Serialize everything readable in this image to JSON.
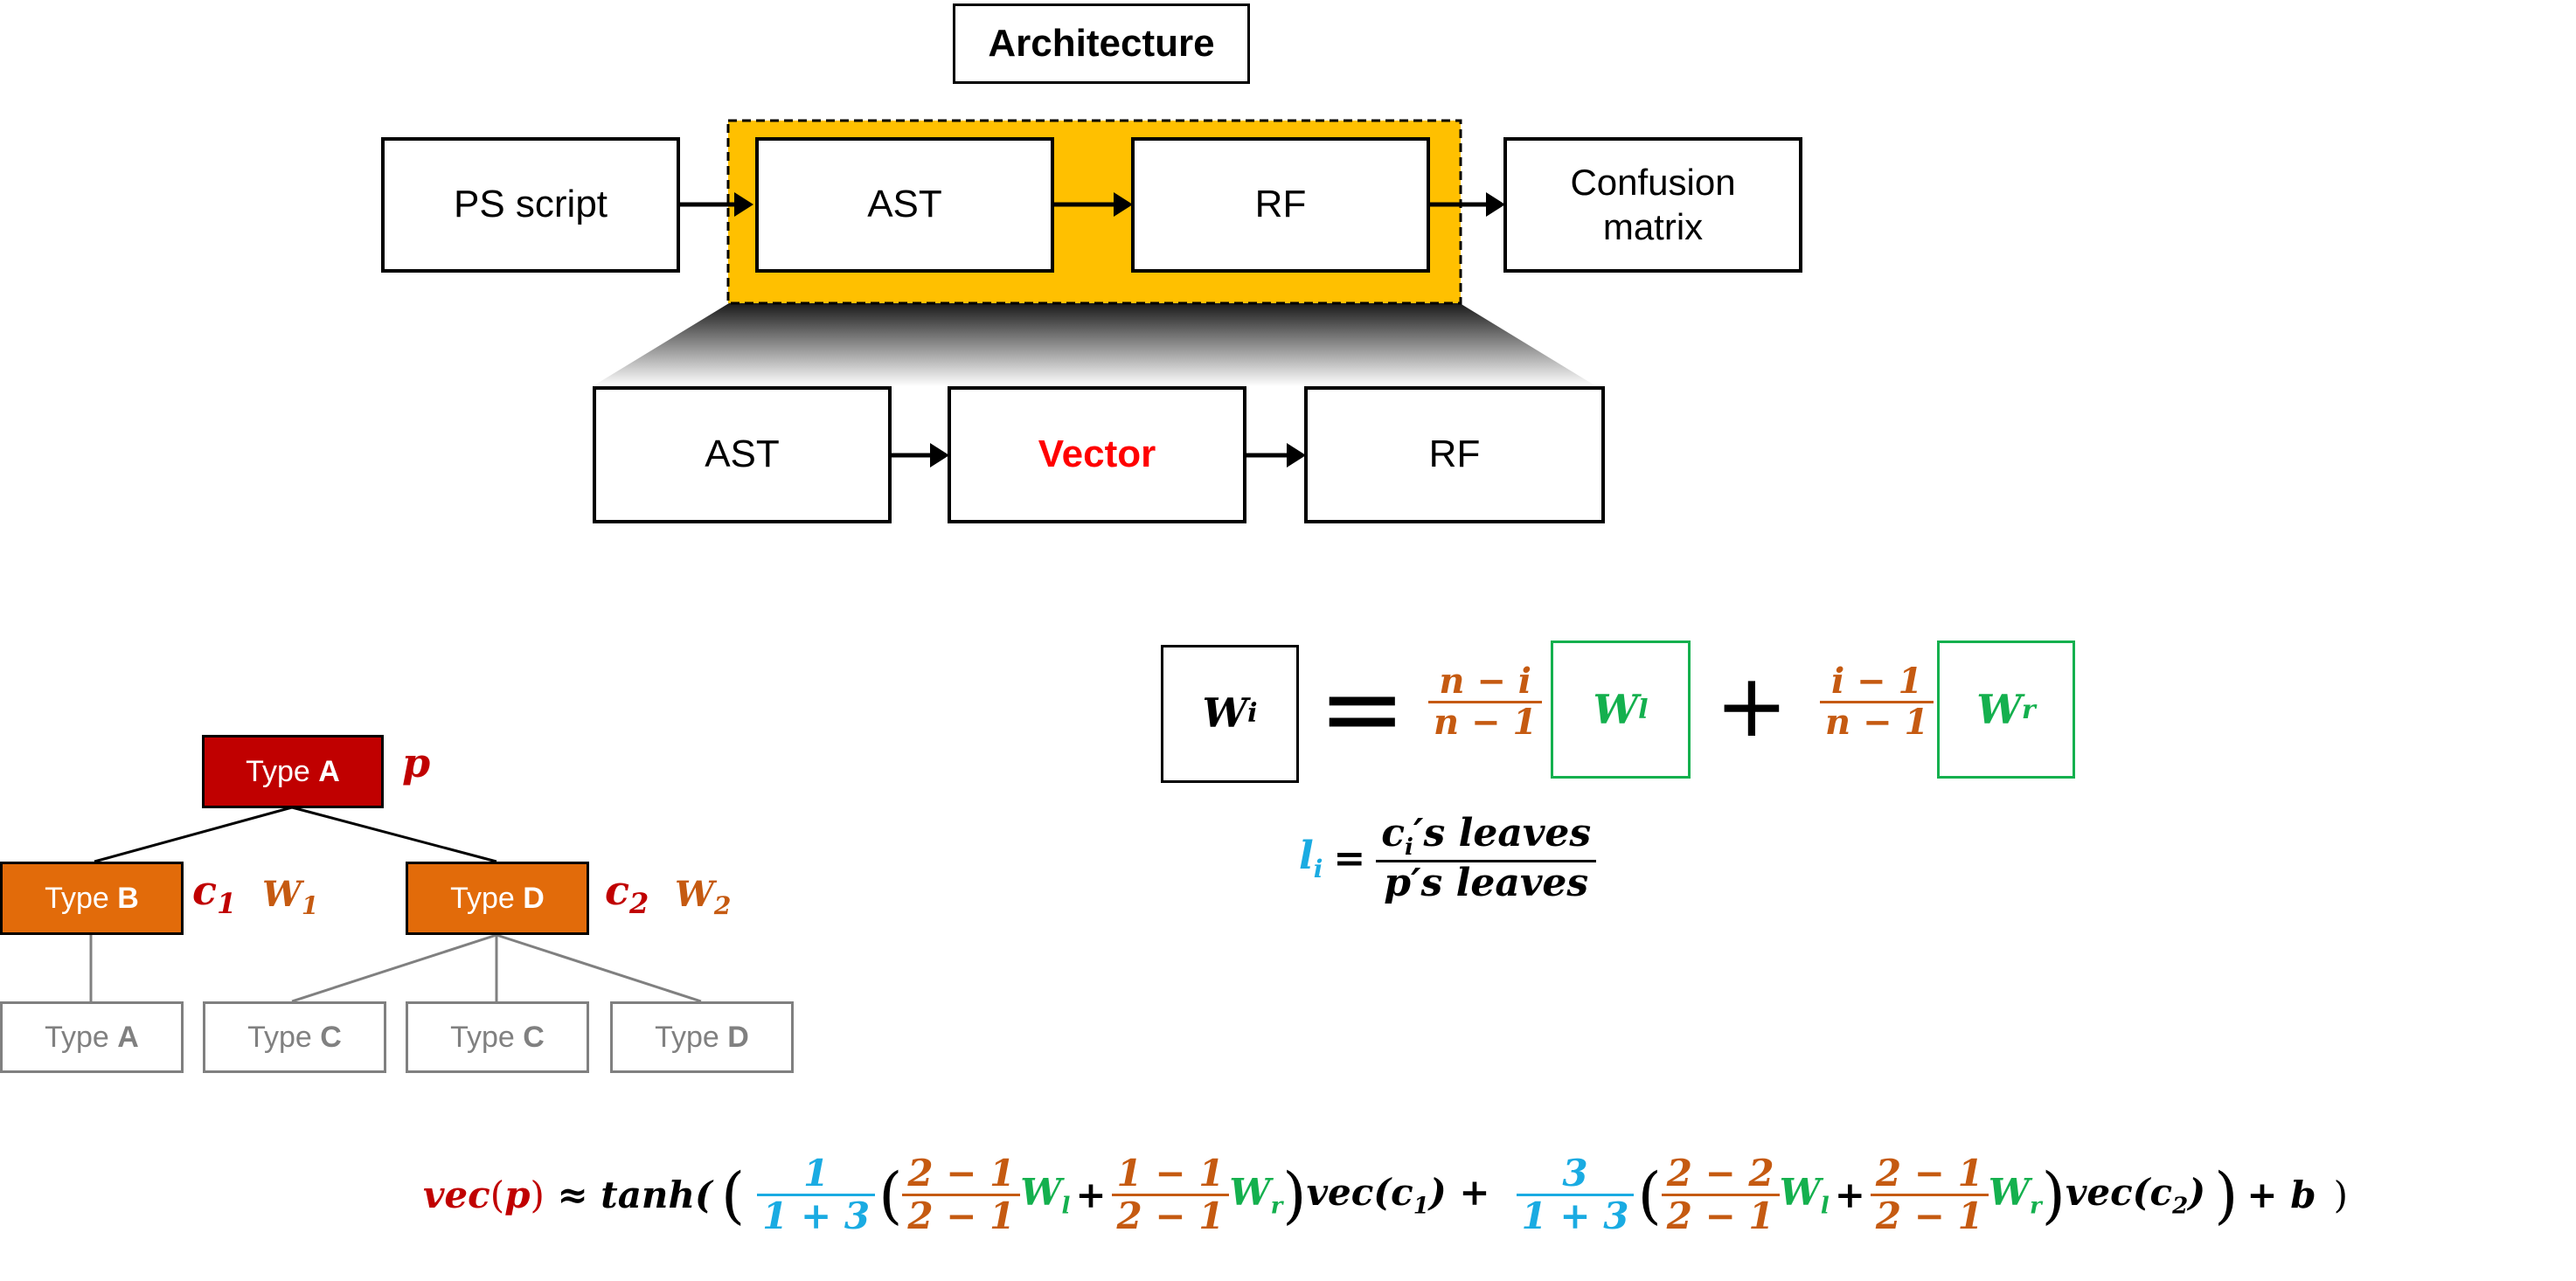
{
  "colors": {
    "highlight": "#ffc000",
    "red": "#c00000",
    "bright_red": "#ff0000",
    "orange": "#e26b0a",
    "orange_text": "#c55a11",
    "green": "#14b04e",
    "blue": "#1aabe2",
    "gray": "#808080"
  },
  "architecture": {
    "title": "Architecture",
    "ps_script": "PS script",
    "ast": "AST",
    "rf": "RF",
    "confusion_line1": "Confusion",
    "confusion_line2": "matrix",
    "zoom_ast": "AST",
    "zoom_vector": "Vector",
    "zoom_rf": "RF"
  },
  "tree": {
    "root": {
      "type": "Type ",
      "letter": "A",
      "label": "p"
    },
    "left": {
      "type": "Type ",
      "letter": "B",
      "label_c": "c",
      "label_c_sub": "1",
      "label_w": "W",
      "label_w_sub": "1"
    },
    "right": {
      "type": "Type ",
      "letter": "D",
      "label_c": "c",
      "label_c_sub": "2",
      "label_w": "W",
      "label_w_sub": "2"
    },
    "leaves": [
      {
        "type": "Type ",
        "letter": "A"
      },
      {
        "type": "Type ",
        "letter": "C"
      },
      {
        "type": "Type ",
        "letter": "C"
      },
      {
        "type": "Type ",
        "letter": "D"
      }
    ]
  },
  "weight_formula": {
    "lhs": "W",
    "lhs_sub": "i",
    "equals": "=",
    "frac1_num": "n − i",
    "frac1_den": "n − 1",
    "wl": "W",
    "wl_sub": "l",
    "plus": "+",
    "frac2_num": "i − 1",
    "frac2_den": "n − 1",
    "wr": "W",
    "wr_sub": "r"
  },
  "leaf_formula": {
    "lhs": "l",
    "lhs_sub": "i",
    "equals": "=",
    "num_c": "c",
    "num_sub": "i",
    "num_rest": "′s leaves",
    "den": "p′s leaves"
  },
  "vec_formula": {
    "vec_p": "vec",
    "p_open": "(",
    "p": "p",
    "p_close": ")",
    "approx": " ≈ tanh(",
    "paren_open": "(",
    "t1_num": "1",
    "t1_den": "1 + 3",
    "t1_open": "(",
    "t1_a_num": "2 − 1",
    "t1_a_den": "2 − 1",
    "t1_wl": "W",
    "t1_wl_sub": "l",
    "t1_plus": "+",
    "t1_b_num": "1 − 1",
    "t1_b_den": "2 − 1",
    "t1_wr": "W",
    "t1_wr_sub": "r",
    "t1_close": ")",
    "t1_vec": "vec(c",
    "t1_vec_sub": "1",
    "t1_vec_close": ") +",
    "t2_num": "3",
    "t2_den": "1 + 3",
    "t2_open": "(",
    "t2_a_num": "2 − 2",
    "t2_a_den": "2 − 1",
    "t2_wl": "W",
    "t2_wl_sub": "l",
    "t2_plus": "+",
    "t2_b_num": "2 − 1",
    "t2_b_den": "2 − 1",
    "t2_wr": "W",
    "t2_wr_sub": "r",
    "t2_close": ")",
    "t2_vec": "vec(c",
    "t2_vec_sub": "2",
    "t2_vec_close": ")",
    "paren_close": ")",
    "plus_b": "+ b",
    "final_close": ")"
  }
}
